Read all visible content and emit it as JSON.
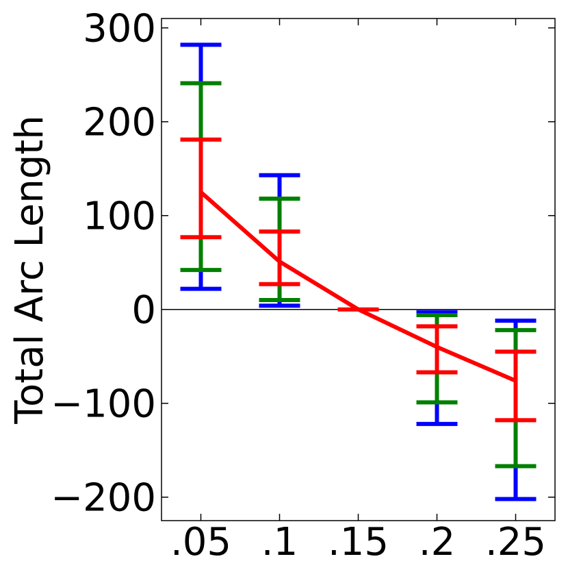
{
  "chart_data": {
    "type": "line",
    "title": "",
    "xlabel": "",
    "ylabel": "Total Arc Length",
    "x": [
      ".05",
      ".1",
      ".15",
      ".2",
      ".25"
    ],
    "xlim": [
      0.025,
      0.275
    ],
    "ylim": [
      -225,
      310
    ],
    "yticks": [
      -200,
      -100,
      0,
      100,
      200,
      300
    ],
    "ytick_labels": [
      "−200",
      "−100",
      "0",
      "100",
      "200",
      "300"
    ],
    "zero_line": true,
    "grid": false,
    "line": {
      "color": "#ff0000",
      "values": [
        125,
        51,
        0,
        -40,
        -76
      ]
    },
    "error_bars": [
      {
        "color": "#0000ff",
        "values": [
          {
            "x": ".05",
            "low": 22,
            "high": 282
          },
          {
            "x": ".1",
            "low": 4,
            "high": 143
          },
          {
            "x": ".15",
            "low": 0,
            "high": 0
          },
          {
            "x": ".2",
            "low": -122,
            "high": -3
          },
          {
            "x": ".25",
            "low": -202,
            "high": -12
          }
        ]
      },
      {
        "color": "#008000",
        "values": [
          {
            "x": ".05",
            "low": 42,
            "high": 241
          },
          {
            "x": ".1",
            "low": 10,
            "high": 118
          },
          {
            "x": ".15",
            "low": 0,
            "high": 0
          },
          {
            "x": ".2",
            "low": -99,
            "high": -6
          },
          {
            "x": ".25",
            "low": -167,
            "high": -22
          }
        ]
      },
      {
        "color": "#ff0000",
        "values": [
          {
            "x": ".05",
            "low": 77,
            "high": 181
          },
          {
            "x": ".1",
            "low": 27,
            "high": 83
          },
          {
            "x": ".15",
            "low": 0,
            "high": 0
          },
          {
            "x": ".2",
            "low": -67,
            "high": -18
          },
          {
            "x": ".25",
            "low": -118,
            "high": -45
          }
        ]
      }
    ]
  }
}
